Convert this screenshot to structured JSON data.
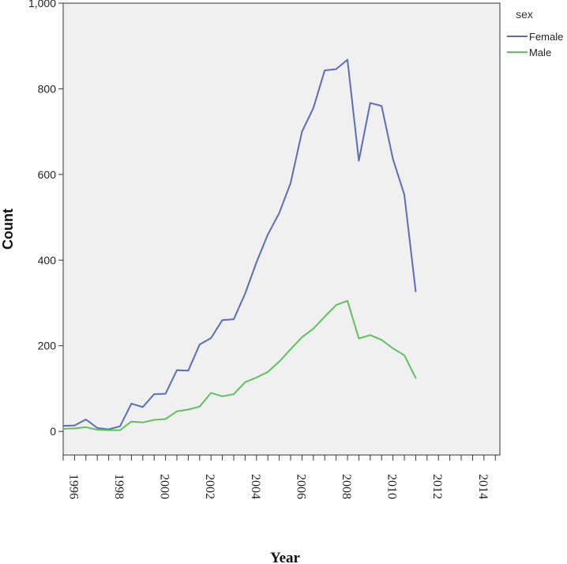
{
  "chart_data": {
    "type": "line",
    "xlabel": "Year",
    "ylabel": "Count",
    "xlim": [
      1995.5,
      2014.7
    ],
    "ylim": [
      -55,
      1000
    ],
    "y_ticks": [
      0,
      200,
      400,
      600,
      800,
      1000
    ],
    "y_tick_labels": [
      "0",
      "200",
      "400",
      "600",
      "800",
      "1,000"
    ],
    "x_ticks": [
      1996,
      1998,
      2000,
      2002,
      2004,
      2006,
      2008,
      2010,
      2012,
      2014
    ],
    "x_tick_labels": [
      "1996",
      "1998",
      "2000",
      "2002",
      "2004",
      "2006",
      "2008",
      "2010",
      "2012",
      "2014"
    ],
    "grid": false,
    "legend": {
      "title": "sex",
      "position": "top-right"
    },
    "background": "#f0f0f0",
    "series": [
      {
        "name": "Female",
        "color": "#5a6eb8",
        "x": [
          1995.5,
          1996.0,
          1996.5,
          1997.0,
          1997.5,
          1998.0,
          1998.5,
          1999.0,
          1999.5,
          2000.0,
          2000.5,
          2001.0,
          2001.5,
          2002.0,
          2002.5,
          2003.0,
          2003.5,
          2004.0,
          2004.5,
          2005.0,
          2005.5,
          2006.0,
          2006.5,
          2007.0,
          2007.5,
          2008.0,
          2008.5,
          2009.0,
          2009.5,
          2010.0,
          2010.5,
          2011.0,
          2011.5,
          2012.0,
          2012.5,
          2013.0,
          2013.5,
          2014.0,
          2014.5
        ],
        "values": [
          13,
          14,
          28,
          8,
          5,
          12,
          65,
          57,
          87,
          88,
          143,
          142,
          203,
          218,
          260,
          262,
          322,
          395,
          460,
          510,
          580,
          700,
          755,
          843,
          846,
          868,
          632,
          767,
          760,
          636,
          553,
          327,
          null,
          null,
          null,
          null,
          null,
          null,
          null
        ]
      },
      {
        "name": "Male",
        "color": "#5ec25e",
        "x": [
          1995.5,
          1996.0,
          1996.5,
          1997.0,
          1997.5,
          1998.0,
          1998.5,
          1999.0,
          1999.5,
          2000.0,
          2000.5,
          2001.0,
          2001.5,
          2002.0,
          2002.5,
          2003.0,
          2003.5,
          2004.0,
          2004.5,
          2005.0,
          2005.5,
          2006.0,
          2006.5,
          2007.0,
          2007.5,
          2008.0,
          2008.5,
          2009.0,
          2009.5,
          2010.0,
          2010.5,
          2011.0,
          2011.5,
          2012.0,
          2012.5,
          2013.0,
          2013.5,
          2014.0,
          2014.5
        ],
        "values": [
          6,
          7,
          10,
          4,
          3,
          3,
          23,
          21,
          27,
          29,
          47,
          51,
          58,
          90,
          82,
          87,
          115,
          126,
          139,
          163,
          192,
          220,
          240,
          268,
          295,
          305,
          217,
          225,
          214,
          194,
          178,
          125,
          null,
          null,
          null,
          null,
          null,
          null,
          null
        ]
      }
    ]
  }
}
